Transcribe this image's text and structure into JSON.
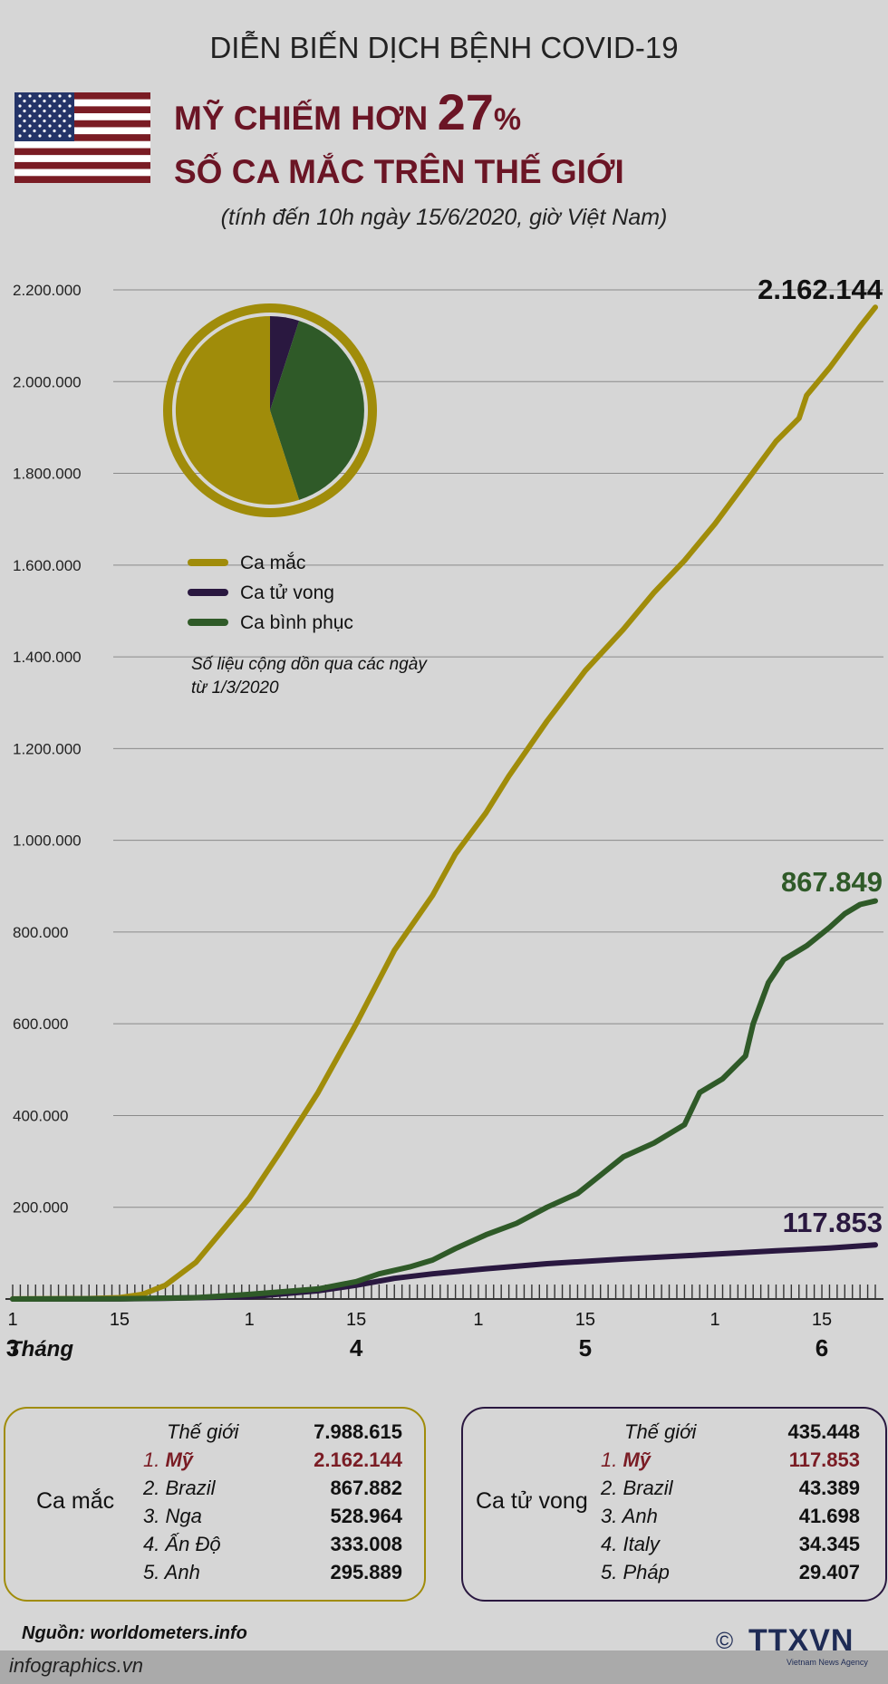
{
  "header": {
    "title": "DIỄN BIẾN DỊCH BỆNH COVID-19",
    "headline_line1_pre": "MỸ CHIẾM HƠN",
    "headline_number": "27",
    "headline_pct": "%",
    "headline_line2": "SỐ CA MẮC TRÊN THẾ GIỚI",
    "subtitle": "(tính đến 10h ngày 15/6/2020, giờ Việt Nam)"
  },
  "colors": {
    "cases": "#a08c0a",
    "deaths": "#2a1840",
    "recovered": "#2f5a28",
    "flag_red": "#7a1c24",
    "flag_blue": "#243468"
  },
  "chart_data": {
    "type": "line",
    "x_label_days": [
      "1",
      "15",
      "1",
      "15",
      "1",
      "15",
      "1",
      "15"
    ],
    "x_label_day_index": [
      0,
      14,
      31,
      45,
      61,
      75,
      92,
      106
    ],
    "month_prefix": "Tháng",
    "months": [
      "3",
      "4",
      "5",
      "6"
    ],
    "month_day_index": [
      0,
      45,
      75,
      106
    ],
    "ylim": [
      0,
      2200000
    ],
    "y_ticks": [
      "2.200.000",
      "2.000.000",
      "1.800.000",
      "1.600.000",
      "1.400.000",
      "1.200.000",
      "1.000.000",
      "800.000",
      "600.000",
      "400.000",
      "200.000"
    ],
    "y_tick_values": [
      2200000,
      2000000,
      1800000,
      1600000,
      1400000,
      1200000,
      1000000,
      800000,
      600000,
      400000,
      200000
    ],
    "series": [
      {
        "name": "Ca mắc",
        "end_label": "2.162.144",
        "points": [
          [
            0,
            100
          ],
          [
            10,
            1000
          ],
          [
            14,
            3000
          ],
          [
            17,
            10000
          ],
          [
            20,
            30000
          ],
          [
            24,
            80000
          ],
          [
            28,
            160000
          ],
          [
            31,
            220000
          ],
          [
            35,
            320000
          ],
          [
            40,
            450000
          ],
          [
            45,
            600000
          ],
          [
            50,
            760000
          ],
          [
            55,
            880000
          ],
          [
            58,
            970000
          ],
          [
            62,
            1060000
          ],
          [
            65,
            1140000
          ],
          [
            70,
            1260000
          ],
          [
            75,
            1370000
          ],
          [
            80,
            1460000
          ],
          [
            84,
            1540000
          ],
          [
            88,
            1610000
          ],
          [
            92,
            1690000
          ],
          [
            96,
            1780000
          ],
          [
            100,
            1870000
          ],
          [
            103,
            1920000
          ],
          [
            104,
            1970000
          ],
          [
            107,
            2030000
          ],
          [
            111,
            2120000
          ],
          [
            113,
            2162144
          ]
        ]
      },
      {
        "name": "Ca tử vong",
        "end_label": "117.853",
        "points": [
          [
            0,
            0
          ],
          [
            14,
            200
          ],
          [
            20,
            1500
          ],
          [
            31,
            5000
          ],
          [
            40,
            18000
          ],
          [
            45,
            30000
          ],
          [
            50,
            45000
          ],
          [
            55,
            55000
          ],
          [
            62,
            66000
          ],
          [
            70,
            77000
          ],
          [
            80,
            87000
          ],
          [
            90,
            96000
          ],
          [
            100,
            105000
          ],
          [
            107,
            111000
          ],
          [
            113,
            117853
          ]
        ]
      },
      {
        "name": "Ca bình phục",
        "end_label": "867.849",
        "points": [
          [
            0,
            0
          ],
          [
            14,
            500
          ],
          [
            24,
            3000
          ],
          [
            31,
            10000
          ],
          [
            40,
            22000
          ],
          [
            45,
            38000
          ],
          [
            48,
            55000
          ],
          [
            52,
            70000
          ],
          [
            55,
            85000
          ],
          [
            58,
            110000
          ],
          [
            62,
            140000
          ],
          [
            66,
            165000
          ],
          [
            70,
            200000
          ],
          [
            74,
            230000
          ],
          [
            77,
            270000
          ],
          [
            80,
            310000
          ],
          [
            84,
            340000
          ],
          [
            88,
            380000
          ],
          [
            90,
            450000
          ],
          [
            93,
            480000
          ],
          [
            96,
            530000
          ],
          [
            97,
            600000
          ],
          [
            99,
            690000
          ],
          [
            101,
            740000
          ],
          [
            104,
            770000
          ],
          [
            107,
            810000
          ],
          [
            109,
            840000
          ],
          [
            111,
            860000
          ],
          [
            113,
            867849
          ]
        ]
      }
    ],
    "pie": {
      "slices": [
        {
          "name": "Ca mắc",
          "value": 55
        },
        {
          "name": "Ca tử vong",
          "value": 5
        },
        {
          "name": "Ca bình phục",
          "value": 40
        }
      ]
    },
    "legend": [
      "Ca mắc",
      "Ca tử vong",
      "Ca bình phục"
    ],
    "note_line1": "Số liệu cộng dồn qua các ngày",
    "note_line2": "từ 1/3/2020"
  },
  "cases_table": {
    "label": "Ca mắc",
    "rows": [
      {
        "rank": "",
        "name": "Thế giới",
        "value": "7.988.615"
      },
      {
        "rank": "1.",
        "name": "Mỹ",
        "value": "2.162.144"
      },
      {
        "rank": "2.",
        "name": "Brazil",
        "value": "867.882"
      },
      {
        "rank": "3.",
        "name": "Nga",
        "value": "528.964"
      },
      {
        "rank": "4.",
        "name": "Ấn Độ",
        "value": "333.008"
      },
      {
        "rank": "5.",
        "name": "Anh",
        "value": "295.889"
      }
    ]
  },
  "deaths_table": {
    "label": "Ca tử vong",
    "rows": [
      {
        "rank": "",
        "name": "Thế giới",
        "value": "435.448"
      },
      {
        "rank": "1.",
        "name": "Mỹ",
        "value": "117.853"
      },
      {
        "rank": "2.",
        "name": "Brazil",
        "value": "43.389"
      },
      {
        "rank": "3.",
        "name": "Anh",
        "value": "41.698"
      },
      {
        "rank": "4.",
        "name": "Italy",
        "value": "34.345"
      },
      {
        "rank": "5.",
        "name": "Pháp",
        "value": "29.407"
      }
    ]
  },
  "footer": {
    "source": "Nguồn: worldometers.info",
    "site": "infographics.vn",
    "logo": "TTXVN",
    "copyright": "©",
    "logo_sub": "Vietnam News Agency"
  }
}
